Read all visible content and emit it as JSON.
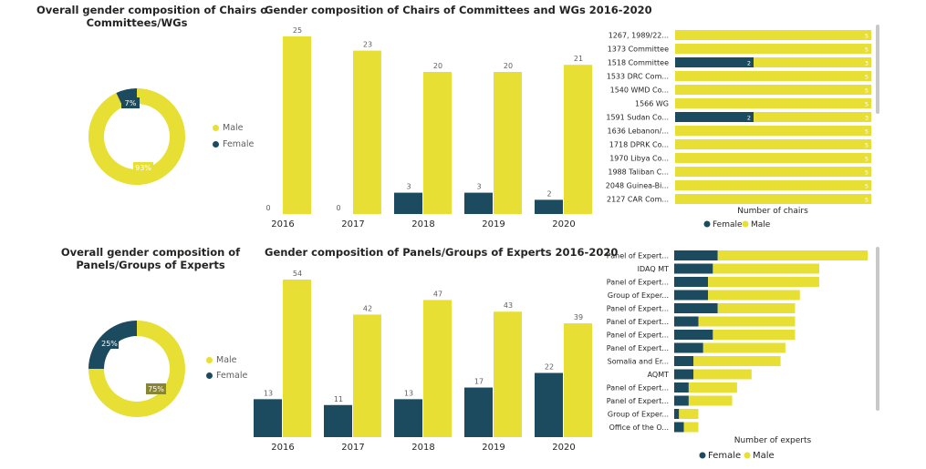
{
  "colors": {
    "male": "#e8df34",
    "female": "#1c4b5f",
    "text": "#252423",
    "muted": "#605e5c",
    "scroll": "#c8c8c8"
  },
  "donut1": {
    "title": "Overall gender composition of Chairs o Committees/WGs",
    "legend": [
      "Male",
      "Female"
    ],
    "chart_data": {
      "type": "pie",
      "title": "Overall gender composition of Chairs o Committees/WGs",
      "labels": [
        "Male",
        "Female"
      ],
      "values": [
        93,
        7
      ],
      "value_labels": [
        "93%",
        "7%"
      ]
    }
  },
  "bars1": {
    "title": "Gender composition of Chairs of Committees and WGs 2016-2020",
    "chart_data": {
      "type": "bar",
      "title": "Gender composition of Chairs of Committees and WGs 2016-2020",
      "categories": [
        "2016",
        "2017",
        "2018",
        "2019",
        "2020"
      ],
      "series": [
        {
          "name": "Female",
          "values": [
            0,
            0,
            3,
            3,
            2
          ]
        },
        {
          "name": "Male",
          "values": [
            25,
            23,
            20,
            20,
            21
          ]
        }
      ]
    }
  },
  "hbar1": {
    "xlabel": "Number of chairs",
    "legend": [
      "Female",
      "Male"
    ],
    "chart_data": {
      "type": "bar",
      "orientation": "horizontal",
      "stacked": true,
      "xlabel": "Number of chairs",
      "categories": [
        "1267, 1989/22...",
        "1373 Committee",
        "1518 Committee",
        "1533 DRC Com...",
        "1540 WMD Co...",
        "1566 WG",
        "1591 Sudan Co...",
        "1636 Lebanon/...",
        "1718 DPRK Co...",
        "1970 Libya Co...",
        "1988 Taliban C...",
        "2048 Guinea-Bi...",
        "2127 CAR Com..."
      ],
      "series": [
        {
          "name": "Female",
          "values": [
            0,
            0,
            2,
            0,
            0,
            0,
            2,
            0,
            0,
            0,
            0,
            0,
            0
          ]
        },
        {
          "name": "Male",
          "values": [
            5,
            5,
            3,
            5,
            5,
            5,
            3,
            5,
            5,
            5,
            5,
            5,
            5
          ]
        }
      ]
    }
  },
  "donut2": {
    "title": "Overall gender composition of Panels/Groups of Experts",
    "legend": [
      "Male",
      "Female"
    ],
    "chart_data": {
      "type": "pie",
      "title": "Overall gender composition of Panels/Groups of Experts",
      "labels": [
        "Male",
        "Female"
      ],
      "values": [
        75,
        25
      ],
      "value_labels": [
        "75%",
        "25%"
      ]
    }
  },
  "bars2": {
    "title": "Gender composition of Panels/Groups of Experts 2016-2020",
    "chart_data": {
      "type": "bar",
      "title": "Gender composition of Panels/Groups of Experts 2016-2020",
      "categories": [
        "2016",
        "2017",
        "2018",
        "2019",
        "2020"
      ],
      "series": [
        {
          "name": "Female",
          "values": [
            13,
            11,
            13,
            17,
            22
          ]
        },
        {
          "name": "Male",
          "values": [
            54,
            42,
            47,
            43,
            39
          ]
        }
      ]
    }
  },
  "hbar2": {
    "xlabel": "Number of experts",
    "legend": [
      "Female",
      "Male"
    ],
    "chart_data": {
      "type": "bar",
      "orientation": "horizontal",
      "stacked": true,
      "xlabel": "Number of experts",
      "categories": [
        "Panel of Expert...",
        "IDAQ MT",
        "Panel of Expert...",
        "Group of Exper...",
        "Panel of Expert...",
        "Panel of Expert...",
        "Panel of Expert...",
        "Panel of Expert...",
        "Somalia and Er...",
        "AQMT",
        "Panel of Expert...",
        "Panel of Expert...",
        "Group of Exper...",
        "Office of the O..."
      ],
      "series": [
        {
          "name": "Female",
          "values": [
            9,
            8,
            7,
            7,
            9,
            5,
            8,
            6,
            4,
            4,
            3,
            3,
            1,
            2
          ]
        },
        {
          "name": "Male",
          "values": [
            31,
            22,
            23,
            19,
            16,
            20,
            17,
            17,
            18,
            12,
            10,
            9,
            4,
            3
          ]
        }
      ]
    }
  }
}
